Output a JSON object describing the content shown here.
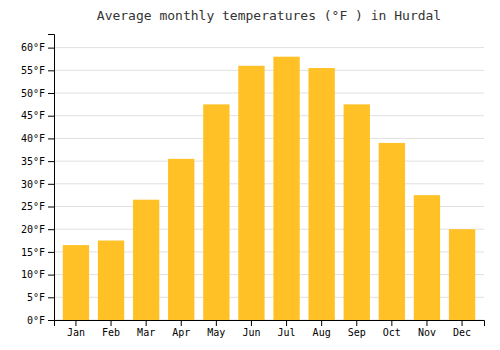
{
  "chart_data": {
    "type": "bar",
    "title": "Average monthly temperatures (°F ) in Hurdal",
    "categories": [
      "Jan",
      "Feb",
      "Mar",
      "Apr",
      "May",
      "Jun",
      "Jul",
      "Aug",
      "Sep",
      "Oct",
      "Nov",
      "Dec"
    ],
    "values": [
      16.5,
      17.5,
      26.5,
      35.5,
      47.5,
      56.0,
      58.0,
      55.5,
      47.5,
      39.0,
      27.5,
      20.0
    ],
    "color": "#FFC125",
    "ylim": [
      0,
      63
    ],
    "yticks": [
      {
        "value": 0,
        "label": "0°F"
      },
      {
        "value": 5,
        "label": "5°F"
      },
      {
        "value": 10,
        "label": "10°F"
      },
      {
        "value": 15,
        "label": "15°F"
      },
      {
        "value": 20,
        "label": "20°F"
      },
      {
        "value": 25,
        "label": "25°F"
      },
      {
        "value": 30,
        "label": "30°F"
      },
      {
        "value": 35,
        "label": "35°F"
      },
      {
        "value": 40,
        "label": "40°F"
      },
      {
        "value": 45,
        "label": "45°F"
      },
      {
        "value": 50,
        "label": "50°F"
      },
      {
        "value": 55,
        "label": "55°F"
      },
      {
        "value": 60,
        "label": "60°F"
      }
    ],
    "grid": true
  }
}
